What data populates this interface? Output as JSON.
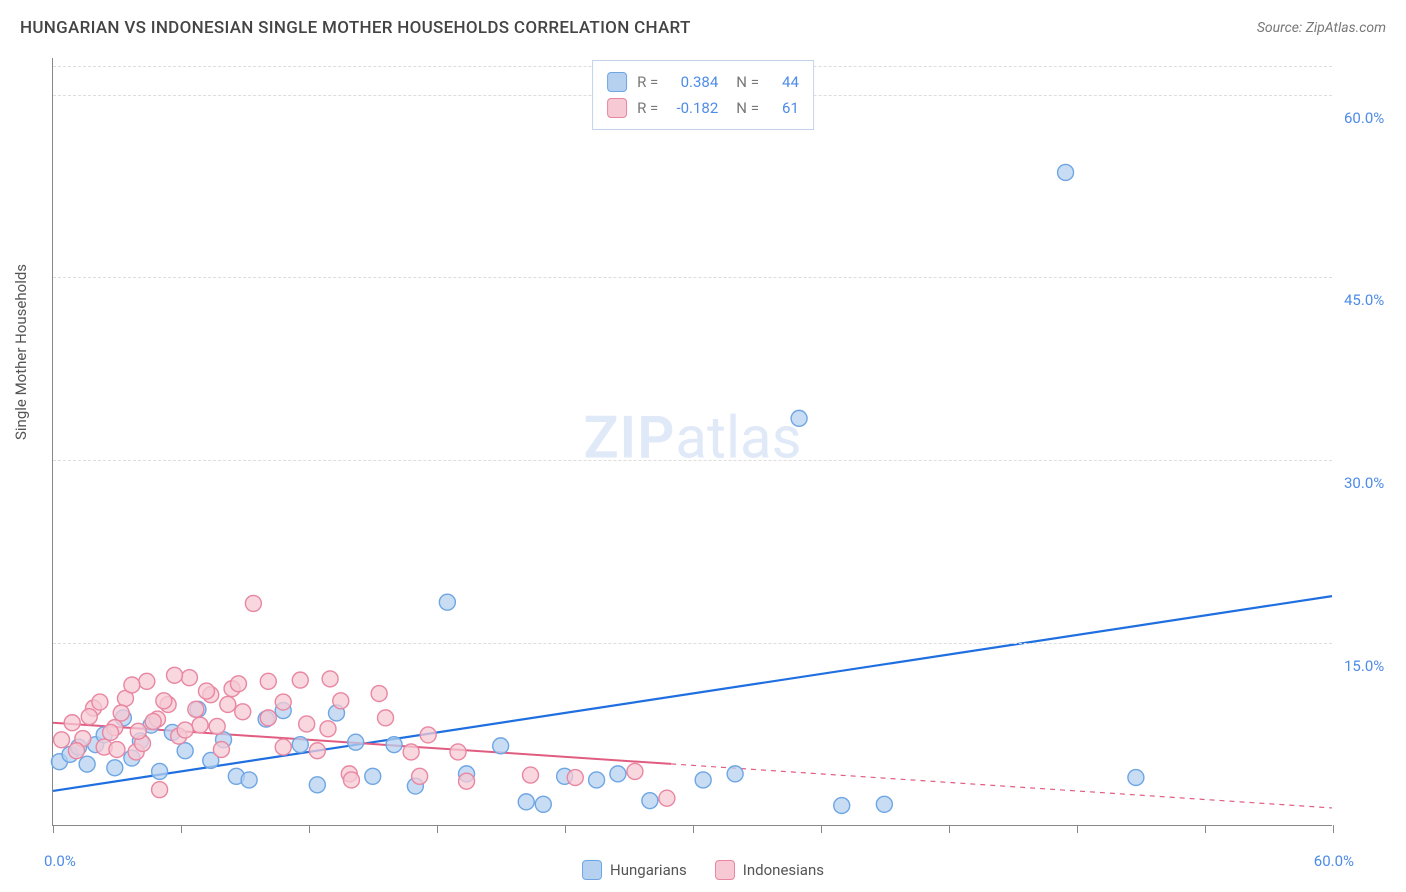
{
  "title": "HUNGARIAN VS INDONESIAN SINGLE MOTHER HOUSEHOLDS CORRELATION CHART",
  "source": "Source: ZipAtlas.com",
  "watermark": {
    "zip": "ZIP",
    "atlas": "atlas"
  },
  "y_axis_label": "Single Mother Households",
  "chart": {
    "type": "scatter",
    "xlim": [
      0,
      60
    ],
    "ylim": [
      0,
      63
    ],
    "x_ticks": [
      0,
      6,
      12,
      18,
      24,
      30,
      36,
      42,
      48,
      54,
      60
    ],
    "x_min_label": "0.0%",
    "x_max_label": "60.0%",
    "y_gridlines": [
      15,
      30,
      45,
      60
    ],
    "y_tick_labels": [
      "15.0%",
      "30.0%",
      "45.0%",
      "60.0%"
    ],
    "background_color": "#ffffff",
    "grid_color": "#dddddd",
    "axis_color": "#888888",
    "marker_radius": 8,
    "marker_stroke_width": 1.4,
    "series": [
      {
        "name": "Hungarians",
        "fill": "#b6d0f0",
        "stroke": "#6ea6e4",
        "line_color": "#1f6fe0",
        "line_width": 2.2,
        "trend": {
          "x1": 0,
          "y1": 2.8,
          "x2": 60,
          "y2": 18.8,
          "solid_until_x": 60
        },
        "R": "0.384",
        "N": "44",
        "points": [
          [
            0.3,
            5.2
          ],
          [
            0.8,
            5.8
          ],
          [
            1.2,
            6.4
          ],
          [
            1.6,
            5.0
          ],
          [
            2.0,
            6.6
          ],
          [
            2.4,
            7.4
          ],
          [
            2.9,
            4.7
          ],
          [
            3.3,
            8.8
          ],
          [
            3.7,
            5.5
          ],
          [
            4.1,
            6.9
          ],
          [
            4.6,
            8.2
          ],
          [
            5.0,
            4.4
          ],
          [
            5.6,
            7.6
          ],
          [
            6.2,
            6.1
          ],
          [
            6.8,
            9.5
          ],
          [
            7.4,
            5.3
          ],
          [
            8.0,
            7.0
          ],
          [
            8.6,
            4.0
          ],
          [
            9.2,
            3.7
          ],
          [
            10.0,
            8.7
          ],
          [
            10.8,
            9.4
          ],
          [
            11.6,
            6.6
          ],
          [
            12.4,
            3.3
          ],
          [
            13.3,
            9.2
          ],
          [
            14.2,
            6.8
          ],
          [
            15.0,
            4.0
          ],
          [
            16.0,
            6.6
          ],
          [
            17.0,
            3.2
          ],
          [
            18.5,
            18.3
          ],
          [
            19.4,
            4.2
          ],
          [
            21.0,
            6.5
          ],
          [
            22.2,
            1.9
          ],
          [
            23.0,
            1.7
          ],
          [
            24.0,
            4.0
          ],
          [
            25.5,
            3.7
          ],
          [
            26.5,
            4.2
          ],
          [
            28.0,
            2.0
          ],
          [
            30.5,
            3.7
          ],
          [
            32.0,
            4.2
          ],
          [
            35.0,
            33.4
          ],
          [
            37.0,
            1.6
          ],
          [
            39.0,
            1.7
          ],
          [
            47.5,
            53.6
          ],
          [
            50.8,
            3.9
          ]
        ]
      },
      {
        "name": "Indonesians",
        "fill": "#f6c9d4",
        "stroke": "#e986a1",
        "line_color": "#e05c80",
        "line_width": 2.0,
        "trend": {
          "x1": 0,
          "y1": 8.4,
          "x2": 60,
          "y2": 1.4,
          "solid_until_x": 29
        },
        "R": "-0.182",
        "N": "61",
        "points": [
          [
            0.4,
            7.0
          ],
          [
            0.9,
            8.4
          ],
          [
            1.4,
            7.1
          ],
          [
            1.9,
            9.6
          ],
          [
            2.4,
            6.4
          ],
          [
            2.9,
            8.0
          ],
          [
            3.4,
            10.4
          ],
          [
            3.9,
            6.0
          ],
          [
            4.4,
            11.8
          ],
          [
            4.9,
            8.7
          ],
          [
            5.4,
            9.9
          ],
          [
            5.9,
            7.3
          ],
          [
            6.4,
            12.1
          ],
          [
            6.9,
            8.2
          ],
          [
            7.4,
            10.7
          ],
          [
            7.9,
            6.2
          ],
          [
            8.4,
            11.2
          ],
          [
            8.9,
            9.3
          ],
          [
            1.1,
            6.1
          ],
          [
            1.7,
            8.9
          ],
          [
            2.2,
            10.1
          ],
          [
            2.7,
            7.6
          ],
          [
            3.2,
            9.2
          ],
          [
            3.7,
            11.5
          ],
          [
            4.2,
            6.7
          ],
          [
            4.7,
            8.5
          ],
          [
            5.2,
            10.2
          ],
          [
            5.7,
            12.3
          ],
          [
            6.2,
            7.8
          ],
          [
            6.7,
            9.5
          ],
          [
            7.2,
            11.0
          ],
          [
            7.7,
            8.1
          ],
          [
            8.2,
            9.9
          ],
          [
            8.7,
            11.6
          ],
          [
            5.0,
            2.9
          ],
          [
            3.0,
            6.2
          ],
          [
            4.0,
            7.7
          ],
          [
            9.4,
            18.2
          ],
          [
            10.1,
            8.8
          ],
          [
            10.1,
            11.8
          ],
          [
            10.8,
            6.4
          ],
          [
            10.8,
            10.1
          ],
          [
            11.6,
            11.9
          ],
          [
            11.9,
            8.3
          ],
          [
            12.4,
            6.1
          ],
          [
            12.9,
            7.9
          ],
          [
            13.0,
            12.0
          ],
          [
            13.5,
            10.2
          ],
          [
            13.9,
            4.2
          ],
          [
            14.0,
            3.7
          ],
          [
            15.3,
            10.8
          ],
          [
            15.6,
            8.8
          ],
          [
            16.8,
            6.0
          ],
          [
            17.2,
            4.0
          ],
          [
            17.6,
            7.4
          ],
          [
            19.0,
            6.0
          ],
          [
            19.4,
            3.6
          ],
          [
            22.4,
            4.1
          ],
          [
            24.5,
            3.9
          ],
          [
            27.3,
            4.4
          ],
          [
            28.8,
            2.2
          ]
        ]
      }
    ]
  },
  "stats_box": {
    "R_label": "R =",
    "N_label": "N ="
  },
  "legend": {
    "label_h": "Hungarians",
    "label_i": "Indonesians"
  }
}
